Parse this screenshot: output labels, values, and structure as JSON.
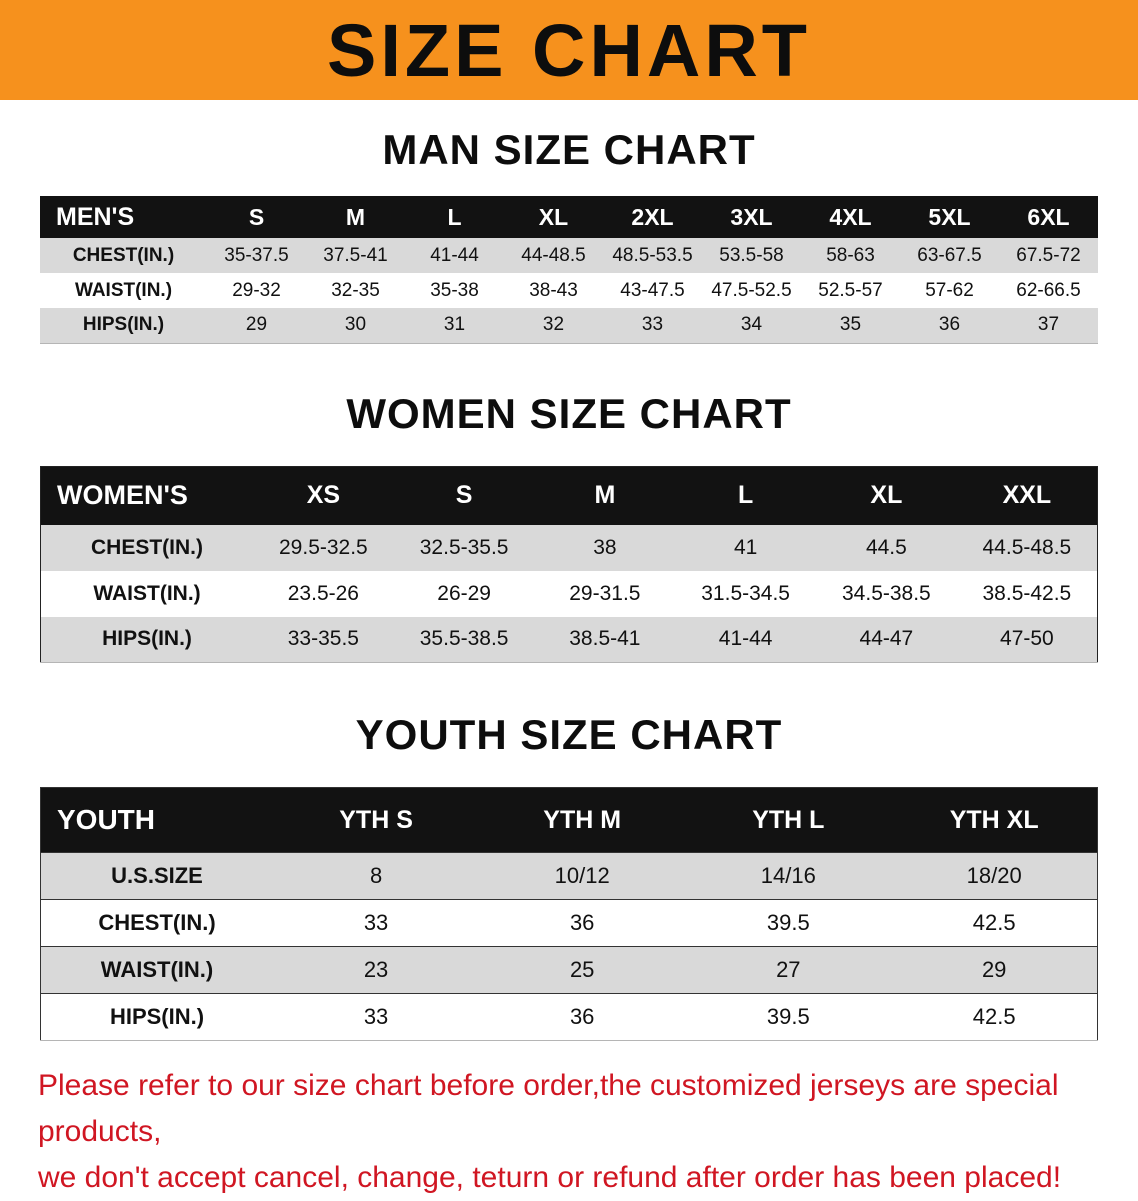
{
  "banner": {
    "title": "SIZE CHART"
  },
  "colors": {
    "banner_bg": "#f6911d",
    "table_header_bg": "#121212",
    "row_stripe_gray": "#d9d9d9",
    "disclaimer_red": "#d01622"
  },
  "tables": {
    "men": {
      "heading": "MAN SIZE CHART",
      "header": [
        "MEN'S",
        "S",
        "M",
        "L",
        "XL",
        "2XL",
        "3XL",
        "4XL",
        "5XL",
        "6XL"
      ],
      "rows": [
        [
          "CHEST(IN.)",
          "35-37.5",
          "37.5-41",
          "41-44",
          "44-48.5",
          "48.5-53.5",
          "53.5-58",
          "58-63",
          "63-67.5",
          "67.5-72"
        ],
        [
          "WAIST(IN.)",
          "29-32",
          "32-35",
          "35-38",
          "38-43",
          "43-47.5",
          "47.5-52.5",
          "52.5-57",
          "57-62",
          "62-66.5"
        ],
        [
          "HIPS(IN.)",
          "29",
          "30",
          "31",
          "32",
          "33",
          "34",
          "35",
          "36",
          "37"
        ]
      ]
    },
    "women": {
      "heading": "WOMEN SIZE CHART",
      "header": [
        "WOMEN'S",
        "XS",
        "S",
        "M",
        "L",
        "XL",
        "XXL"
      ],
      "rows": [
        [
          "CHEST(IN.)",
          "29.5-32.5",
          "32.5-35.5",
          "38",
          "41",
          "44.5",
          "44.5-48.5"
        ],
        [
          "WAIST(IN.)",
          "23.5-26",
          "26-29",
          "29-31.5",
          "31.5-34.5",
          "34.5-38.5",
          "38.5-42.5"
        ],
        [
          "HIPS(IN.)",
          "33-35.5",
          "35.5-38.5",
          "38.5-41",
          "41-44",
          "44-47",
          "47-50"
        ]
      ]
    },
    "youth": {
      "heading": "YOUTH SIZE CHART",
      "header": [
        "YOUTH",
        "YTH S",
        "YTH M",
        "YTH L",
        "YTH XL"
      ],
      "rows": [
        [
          "U.S.SIZE",
          "8",
          "10/12",
          "14/16",
          "18/20"
        ],
        [
          "CHEST(IN.)",
          "33",
          "36",
          "39.5",
          "42.5"
        ],
        [
          "WAIST(IN.)",
          "23",
          "25",
          "27",
          "29"
        ],
        [
          "HIPS(IN.)",
          "33",
          "36",
          "39.5",
          "42.5"
        ]
      ]
    }
  },
  "footer": {
    "line1": "Please refer to our size chart before order,the customized jerseys are special products,",
    "line2": "we don't accept cancel, change, teturn or refund after order has been placed!"
  }
}
